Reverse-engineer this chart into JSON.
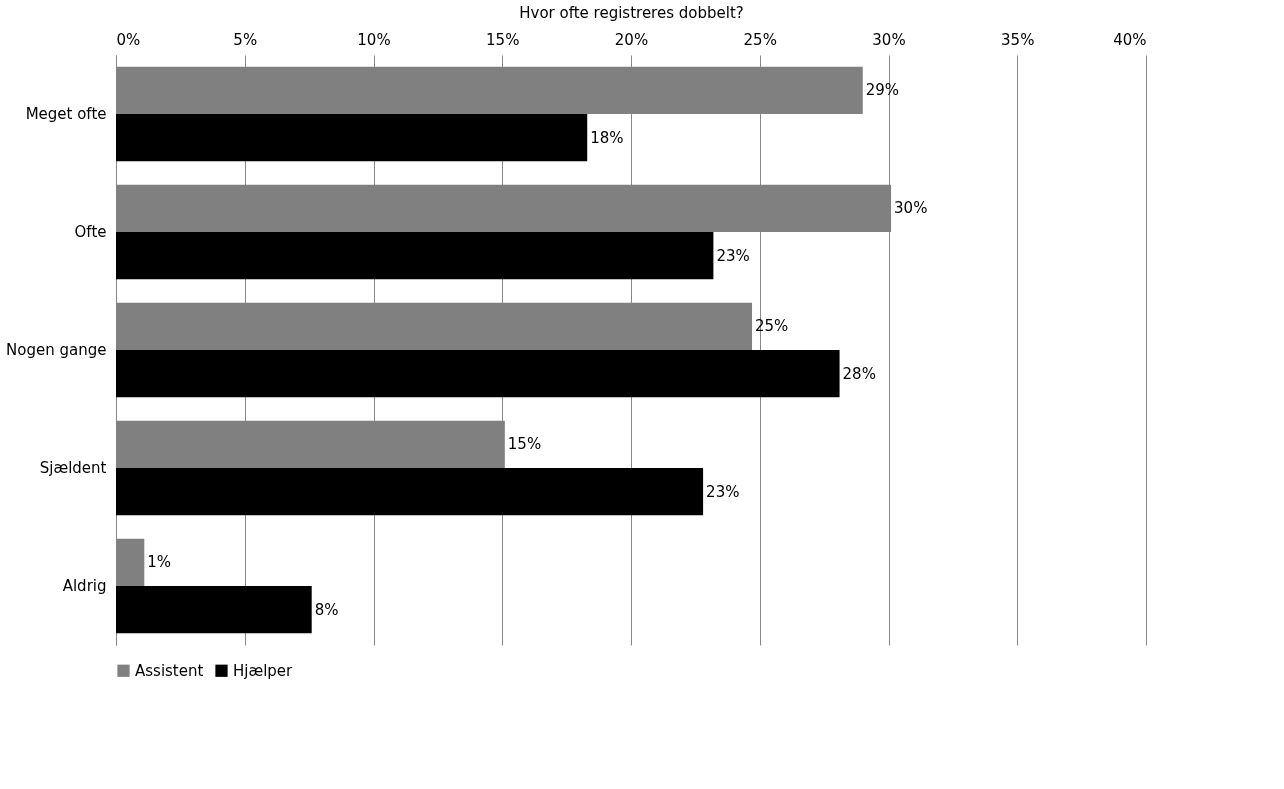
{
  "chart_data": {
    "type": "bar",
    "orientation": "horizontal",
    "xlabel": "Hvor ofte registreres dobbelt?",
    "categories": [
      "Meget ofte",
      "Ofte",
      "Nogen gange",
      "Sjældent",
      "Aldrig"
    ],
    "series": [
      {
        "name": "Assistent",
        "color": "#808080",
        "values": [
          29.0,
          30.1,
          24.7,
          15.1,
          1.1
        ],
        "value_labels": [
          "29%",
          "30%",
          "25%",
          "15%",
          "1%"
        ]
      },
      {
        "name": "Hjælper",
        "color": "#000000",
        "values": [
          18.3,
          23.2,
          28.1,
          22.8,
          7.6
        ],
        "value_labels": [
          "18%",
          "23%",
          "28%",
          "23%",
          "8%"
        ]
      }
    ],
    "xlim": [
      0,
      40
    ],
    "xticks": [
      {
        "value": 0,
        "label": "0%"
      },
      {
        "value": 5,
        "label": "5%"
      },
      {
        "value": 10,
        "label": "10%"
      },
      {
        "value": 15,
        "label": "15%"
      },
      {
        "value": 20,
        "label": "20%"
      },
      {
        "value": 25,
        "label": "25%"
      },
      {
        "value": 30,
        "label": "30%"
      },
      {
        "value": 35,
        "label": "35%"
      },
      {
        "value": 40,
        "label": "40%"
      }
    ],
    "grid": "x",
    "legend": "bottom"
  }
}
